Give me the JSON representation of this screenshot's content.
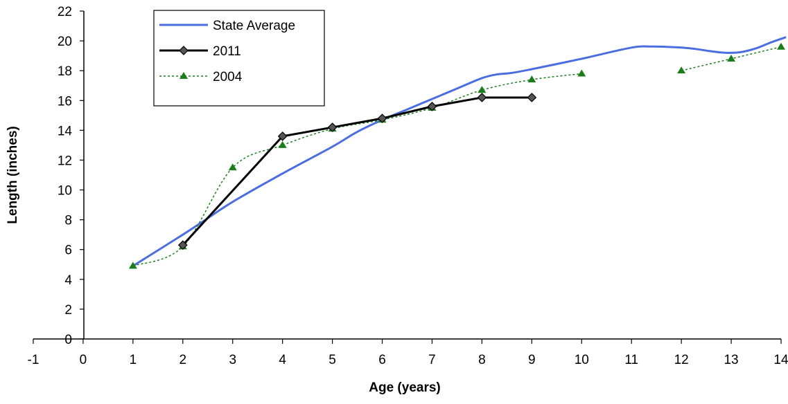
{
  "chart_data": {
    "type": "line",
    "xlabel": "Age (years)",
    "ylabel": "Length (inches)",
    "xlim": [
      -1,
      14
    ],
    "ylim": [
      0,
      22
    ],
    "x_ticks": [
      -1,
      0,
      1,
      2,
      3,
      4,
      5,
      6,
      7,
      8,
      9,
      10,
      11,
      12,
      13,
      14
    ],
    "y_ticks": [
      0,
      2,
      4,
      6,
      8,
      10,
      12,
      14,
      16,
      18,
      20,
      22
    ],
    "grid": false,
    "legend_placement": "top-left",
    "series": [
      {
        "name": "State Average",
        "color": "#4a6ee0",
        "style": "solid-smooth",
        "marker": "none",
        "points": [
          [
            1,
            4.9
          ],
          [
            2,
            7.0
          ],
          [
            2.5,
            8.1
          ],
          [
            3,
            9.2
          ],
          [
            4,
            11.1
          ],
          [
            5,
            12.9
          ],
          [
            5.5,
            13.9
          ],
          [
            6,
            14.7
          ],
          [
            6.5,
            15.4
          ],
          [
            7,
            16.1
          ],
          [
            7.5,
            16.8
          ],
          [
            8,
            17.5
          ],
          [
            8.3,
            17.75
          ],
          [
            8.6,
            17.85
          ],
          [
            9,
            18.1
          ],
          [
            10,
            18.8
          ],
          [
            11,
            19.55
          ],
          [
            11.4,
            19.62
          ],
          [
            11.7,
            19.6
          ],
          [
            12,
            19.55
          ],
          [
            12.3,
            19.45
          ],
          [
            12.6,
            19.3
          ],
          [
            12.9,
            19.2
          ],
          [
            13.2,
            19.25
          ],
          [
            13.5,
            19.5
          ],
          [
            13.8,
            19.9
          ],
          [
            14.1,
            20.25
          ]
        ]
      },
      {
        "name": "2011",
        "color": "#000000",
        "style": "solid",
        "marker": "diamond",
        "points": [
          [
            2,
            6.3
          ],
          [
            4,
            13.6
          ],
          [
            5,
            14.2
          ],
          [
            6,
            14.8
          ],
          [
            7,
            15.6
          ],
          [
            8,
            16.2
          ],
          [
            9,
            16.2
          ]
        ]
      },
      {
        "name": "2004",
        "color": "#1a7d1a",
        "style": "dotted",
        "marker": "triangle",
        "segments": [
          [
            [
              1,
              4.9
            ],
            [
              2,
              6.2
            ],
            [
              3,
              11.5
            ],
            [
              4,
              13.0
            ],
            [
              5,
              14.1
            ],
            [
              6,
              14.7
            ],
            [
              7,
              15.5
            ],
            [
              8,
              16.7
            ],
            [
              9,
              17.4
            ],
            [
              10,
              17.8
            ]
          ],
          [
            [
              12,
              18.0
            ],
            [
              13,
              18.8
            ],
            [
              14,
              19.6
            ]
          ]
        ]
      }
    ]
  }
}
